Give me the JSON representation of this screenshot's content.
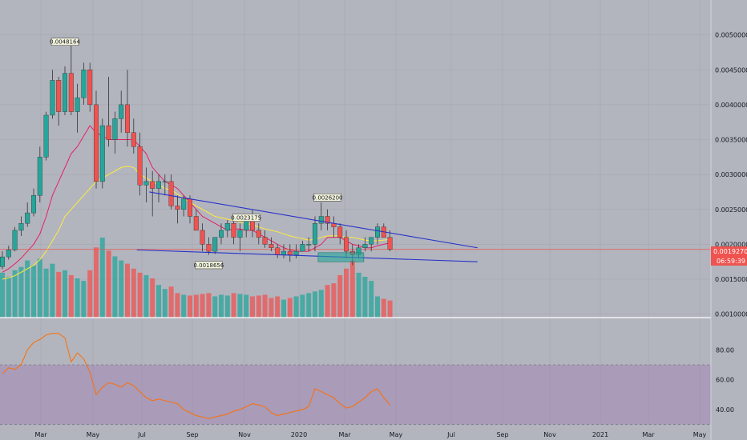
{
  "chart_data": {
    "type": "candlestick",
    "title": "",
    "y_axis": {
      "range": [
        0.00095,
        0.0055
      ],
      "ticks": [
        "0.0050000",
        "0.0045000",
        "0.0040000",
        "0.0035000",
        "0.0030000",
        "0.0025000",
        "0.0020000",
        "0.0015000",
        "0.0010000"
      ]
    },
    "x_axis": {
      "ticks": [
        "Mar",
        "May",
        "Jul",
        "Sep",
        "Nov",
        "2020",
        "Mar",
        "May",
        "Jul",
        "Sep",
        "Nov",
        "2021",
        "Mar",
        "May"
      ]
    },
    "last_price": "0.0019270",
    "countdown": "06:59:39",
    "colors": {
      "up": "#26a69a",
      "down": "#ef5350",
      "ema_fast": "#e91e63",
      "ema_slow": "#ffeb3b",
      "trend": "#2832c8",
      "rsi": "#ff6d00",
      "price_line": "#ef5350"
    },
    "annotations": [
      {
        "text": "0.0048164",
        "week": 10,
        "price": 0.00485
      },
      {
        "text": "0.0018656",
        "week": 33,
        "price": 0.00165
      },
      {
        "text": "0.0023175",
        "week": 39,
        "price": 0.00233
      },
      {
        "text": "0.0026200",
        "week": 52,
        "price": 0.00262
      }
    ],
    "candles": [
      [
        0.00168,
        0.0019,
        0.00164,
        0.00182
      ],
      [
        0.00182,
        0.00198,
        0.00178,
        0.00192
      ],
      [
        0.00192,
        0.00225,
        0.0019,
        0.0022
      ],
      [
        0.0022,
        0.0024,
        0.00212,
        0.0023
      ],
      [
        0.0023,
        0.0026,
        0.00225,
        0.00245
      ],
      [
        0.00245,
        0.0028,
        0.0024,
        0.0027
      ],
      [
        0.0027,
        0.0034,
        0.0026,
        0.00325
      ],
      [
        0.00325,
        0.0039,
        0.0032,
        0.00385
      ],
      [
        0.00385,
        0.0045,
        0.0038,
        0.00435
      ],
      [
        0.00435,
        0.0044,
        0.0037,
        0.0039
      ],
      [
        0.0039,
        0.00455,
        0.00385,
        0.00445
      ],
      [
        0.00445,
        0.00485,
        0.00385,
        0.0039
      ],
      [
        0.0039,
        0.0043,
        0.0036,
        0.0041
      ],
      [
        0.0041,
        0.0046,
        0.004,
        0.0045
      ],
      [
        0.0045,
        0.0046,
        0.0039,
        0.004
      ],
      [
        0.004,
        0.0042,
        0.0028,
        0.0029
      ],
      [
        0.0029,
        0.0038,
        0.0028,
        0.0037
      ],
      [
        0.0037,
        0.0044,
        0.0034,
        0.0035
      ],
      [
        0.0035,
        0.0039,
        0.0033,
        0.0038
      ],
      [
        0.0038,
        0.0042,
        0.0036,
        0.004
      ],
      [
        0.004,
        0.0045,
        0.0034,
        0.0036
      ],
      [
        0.0036,
        0.0038,
        0.0033,
        0.0034
      ],
      [
        0.0034,
        0.0036,
        0.0027,
        0.00285
      ],
      [
        0.00285,
        0.0031,
        0.0026,
        0.0029
      ],
      [
        0.0029,
        0.00305,
        0.0024,
        0.0028
      ],
      [
        0.0028,
        0.003,
        0.0026,
        0.0029
      ],
      [
        0.0029,
        0.003,
        0.0027,
        0.0029
      ],
      [
        0.0029,
        0.003,
        0.0025,
        0.00255
      ],
      [
        0.00255,
        0.0027,
        0.0023,
        0.0025
      ],
      [
        0.0025,
        0.0027,
        0.0024,
        0.00265
      ],
      [
        0.00265,
        0.0027,
        0.0023,
        0.0024
      ],
      [
        0.0024,
        0.0025,
        0.0022,
        0.0022
      ],
      [
        0.0022,
        0.0023,
        0.0019,
        0.002
      ],
      [
        0.002,
        0.0021,
        0.00185,
        0.0019
      ],
      [
        0.0019,
        0.0021,
        0.00186,
        0.0021
      ],
      [
        0.0021,
        0.0023,
        0.002,
        0.0022
      ],
      [
        0.0022,
        0.00235,
        0.0021,
        0.0023
      ],
      [
        0.0023,
        0.0024,
        0.002,
        0.0021
      ],
      [
        0.0021,
        0.0023,
        0.0019,
        0.0022
      ],
      [
        0.0022,
        0.00242,
        0.0021,
        0.0024
      ],
      [
        0.0024,
        0.0025,
        0.0021,
        0.0022
      ],
      [
        0.0022,
        0.0023,
        0.002,
        0.0021
      ],
      [
        0.0021,
        0.0022,
        0.00195,
        0.002
      ],
      [
        0.002,
        0.0021,
        0.0019,
        0.00195
      ],
      [
        0.00195,
        0.002,
        0.0018,
        0.00185
      ],
      [
        0.00185,
        0.002,
        0.0018,
        0.0019
      ],
      [
        0.0019,
        0.002,
        0.00175,
        0.00185
      ],
      [
        0.00185,
        0.002,
        0.0018,
        0.0019
      ],
      [
        0.0019,
        0.00205,
        0.0019,
        0.002
      ],
      [
        0.002,
        0.0021,
        0.0019,
        0.002
      ],
      [
        0.002,
        0.0024,
        0.0019,
        0.0023
      ],
      [
        0.0023,
        0.0026,
        0.0022,
        0.0024
      ],
      [
        0.0024,
        0.0025,
        0.0022,
        0.0023
      ],
      [
        0.0023,
        0.0024,
        0.0021,
        0.00225
      ],
      [
        0.00225,
        0.0023,
        0.002,
        0.0021
      ],
      [
        0.0021,
        0.0022,
        0.0018,
        0.0019
      ],
      [
        0.0019,
        0.002,
        0.0017,
        0.00185
      ],
      [
        0.00185,
        0.002,
        0.0018,
        0.00195
      ],
      [
        0.00195,
        0.0021,
        0.0019,
        0.002
      ],
      [
        0.002,
        0.0021,
        0.0019,
        0.0021
      ],
      [
        0.0021,
        0.0023,
        0.002,
        0.00225
      ],
      [
        0.00225,
        0.0023,
        0.0021,
        0.0021
      ],
      [
        0.0021,
        0.0022,
        0.0019,
        0.00193
      ]
    ],
    "volume": [
      55,
      50,
      58,
      62,
      70,
      64,
      72,
      60,
      66,
      56,
      58,
      52,
      48,
      45,
      58,
      86,
      98,
      82,
      75,
      70,
      66,
      60,
      55,
      52,
      48,
      40,
      35,
      38,
      30,
      28,
      27,
      28,
      29,
      30,
      26,
      28,
      27,
      30,
      29,
      28,
      26,
      27,
      28,
      24,
      26,
      22,
      24,
      26,
      28,
      30,
      32,
      34,
      40,
      42,
      52,
      60,
      70,
      55,
      50,
      45,
      26,
      23,
      21
    ],
    "rsi": {
      "range": [
        25,
        100
      ],
      "ticks": [
        "80.00",
        "60.00",
        "40.00"
      ],
      "band": [
        30,
        70
      ],
      "values": [
        64,
        68,
        67,
        70,
        80,
        85,
        87,
        90,
        91,
        91,
        88,
        72,
        78,
        74,
        65,
        50,
        55,
        58,
        57,
        55,
        58,
        56,
        52,
        48,
        46,
        47,
        46,
        45,
        44,
        40,
        38,
        36,
        35,
        34,
        35,
        36,
        37,
        39,
        40,
        42,
        44,
        43,
        42,
        38,
        36,
        37,
        38,
        39,
        40,
        42,
        54,
        52,
        50,
        48,
        44,
        41,
        42,
        45,
        48,
        52,
        54,
        48,
        43
      ]
    },
    "ema_fast": [
      0.0016,
      0.00165,
      0.00172,
      0.0018,
      0.0019,
      0.002,
      0.00215,
      0.0024,
      0.0027,
      0.0029,
      0.0031,
      0.0033,
      0.0034,
      0.00355,
      0.0037,
      0.0036,
      0.00355,
      0.0035,
      0.0035,
      0.0035,
      0.0035,
      0.0035,
      0.0034,
      0.0033,
      0.0031,
      0.003,
      0.0029,
      0.00285,
      0.0028,
      0.0027,
      0.0026,
      0.0025,
      0.0024,
      0.00235,
      0.0023,
      0.00225,
      0.0022,
      0.00222,
      0.00222,
      0.0022,
      0.0022,
      0.00215,
      0.0021,
      0.00205,
      0.002,
      0.00195,
      0.00192,
      0.0019,
      0.0019,
      0.0019,
      0.00195,
      0.002,
      0.0021,
      0.0021,
      0.0021,
      0.00205,
      0.002,
      0.00198,
      0.00195,
      0.00195,
      0.00198,
      0.002,
      0.00202
    ],
    "ema_slow": [
      0.0015,
      0.00152,
      0.00155,
      0.0016,
      0.00165,
      0.0017,
      0.00178,
      0.0019,
      0.00205,
      0.0022,
      0.0024,
      0.0025,
      0.0026,
      0.0027,
      0.0028,
      0.0029,
      0.00295,
      0.003,
      0.00305,
      0.0031,
      0.00312,
      0.0031,
      0.003,
      0.00295,
      0.0029,
      0.00285,
      0.0028,
      0.00278,
      0.00272,
      0.00266,
      0.0026,
      0.00255,
      0.0025,
      0.00245,
      0.0024,
      0.00238,
      0.00236,
      0.00234,
      0.00232,
      0.0023,
      0.00228,
      0.00225,
      0.00222,
      0.0022,
      0.00218,
      0.00215,
      0.00212,
      0.0021,
      0.00208,
      0.00206,
      0.00207,
      0.0021,
      0.00212,
      0.00212,
      0.00212,
      0.0021,
      0.0021,
      0.00208,
      0.00206,
      0.00205,
      0.00205,
      0.00206,
      0.00207
    ],
    "trendlines": [
      {
        "from": [
          23.5,
          0.00275
        ],
        "to": [
          76,
          0.00195
        ]
      },
      {
        "from": [
          21.5,
          0.00192
        ],
        "to": [
          76,
          0.00175
        ]
      }
    ],
    "zone": {
      "from_week": 50.5,
      "to_week": 57.8,
      "low": 0.00175,
      "high": 0.00188
    }
  }
}
